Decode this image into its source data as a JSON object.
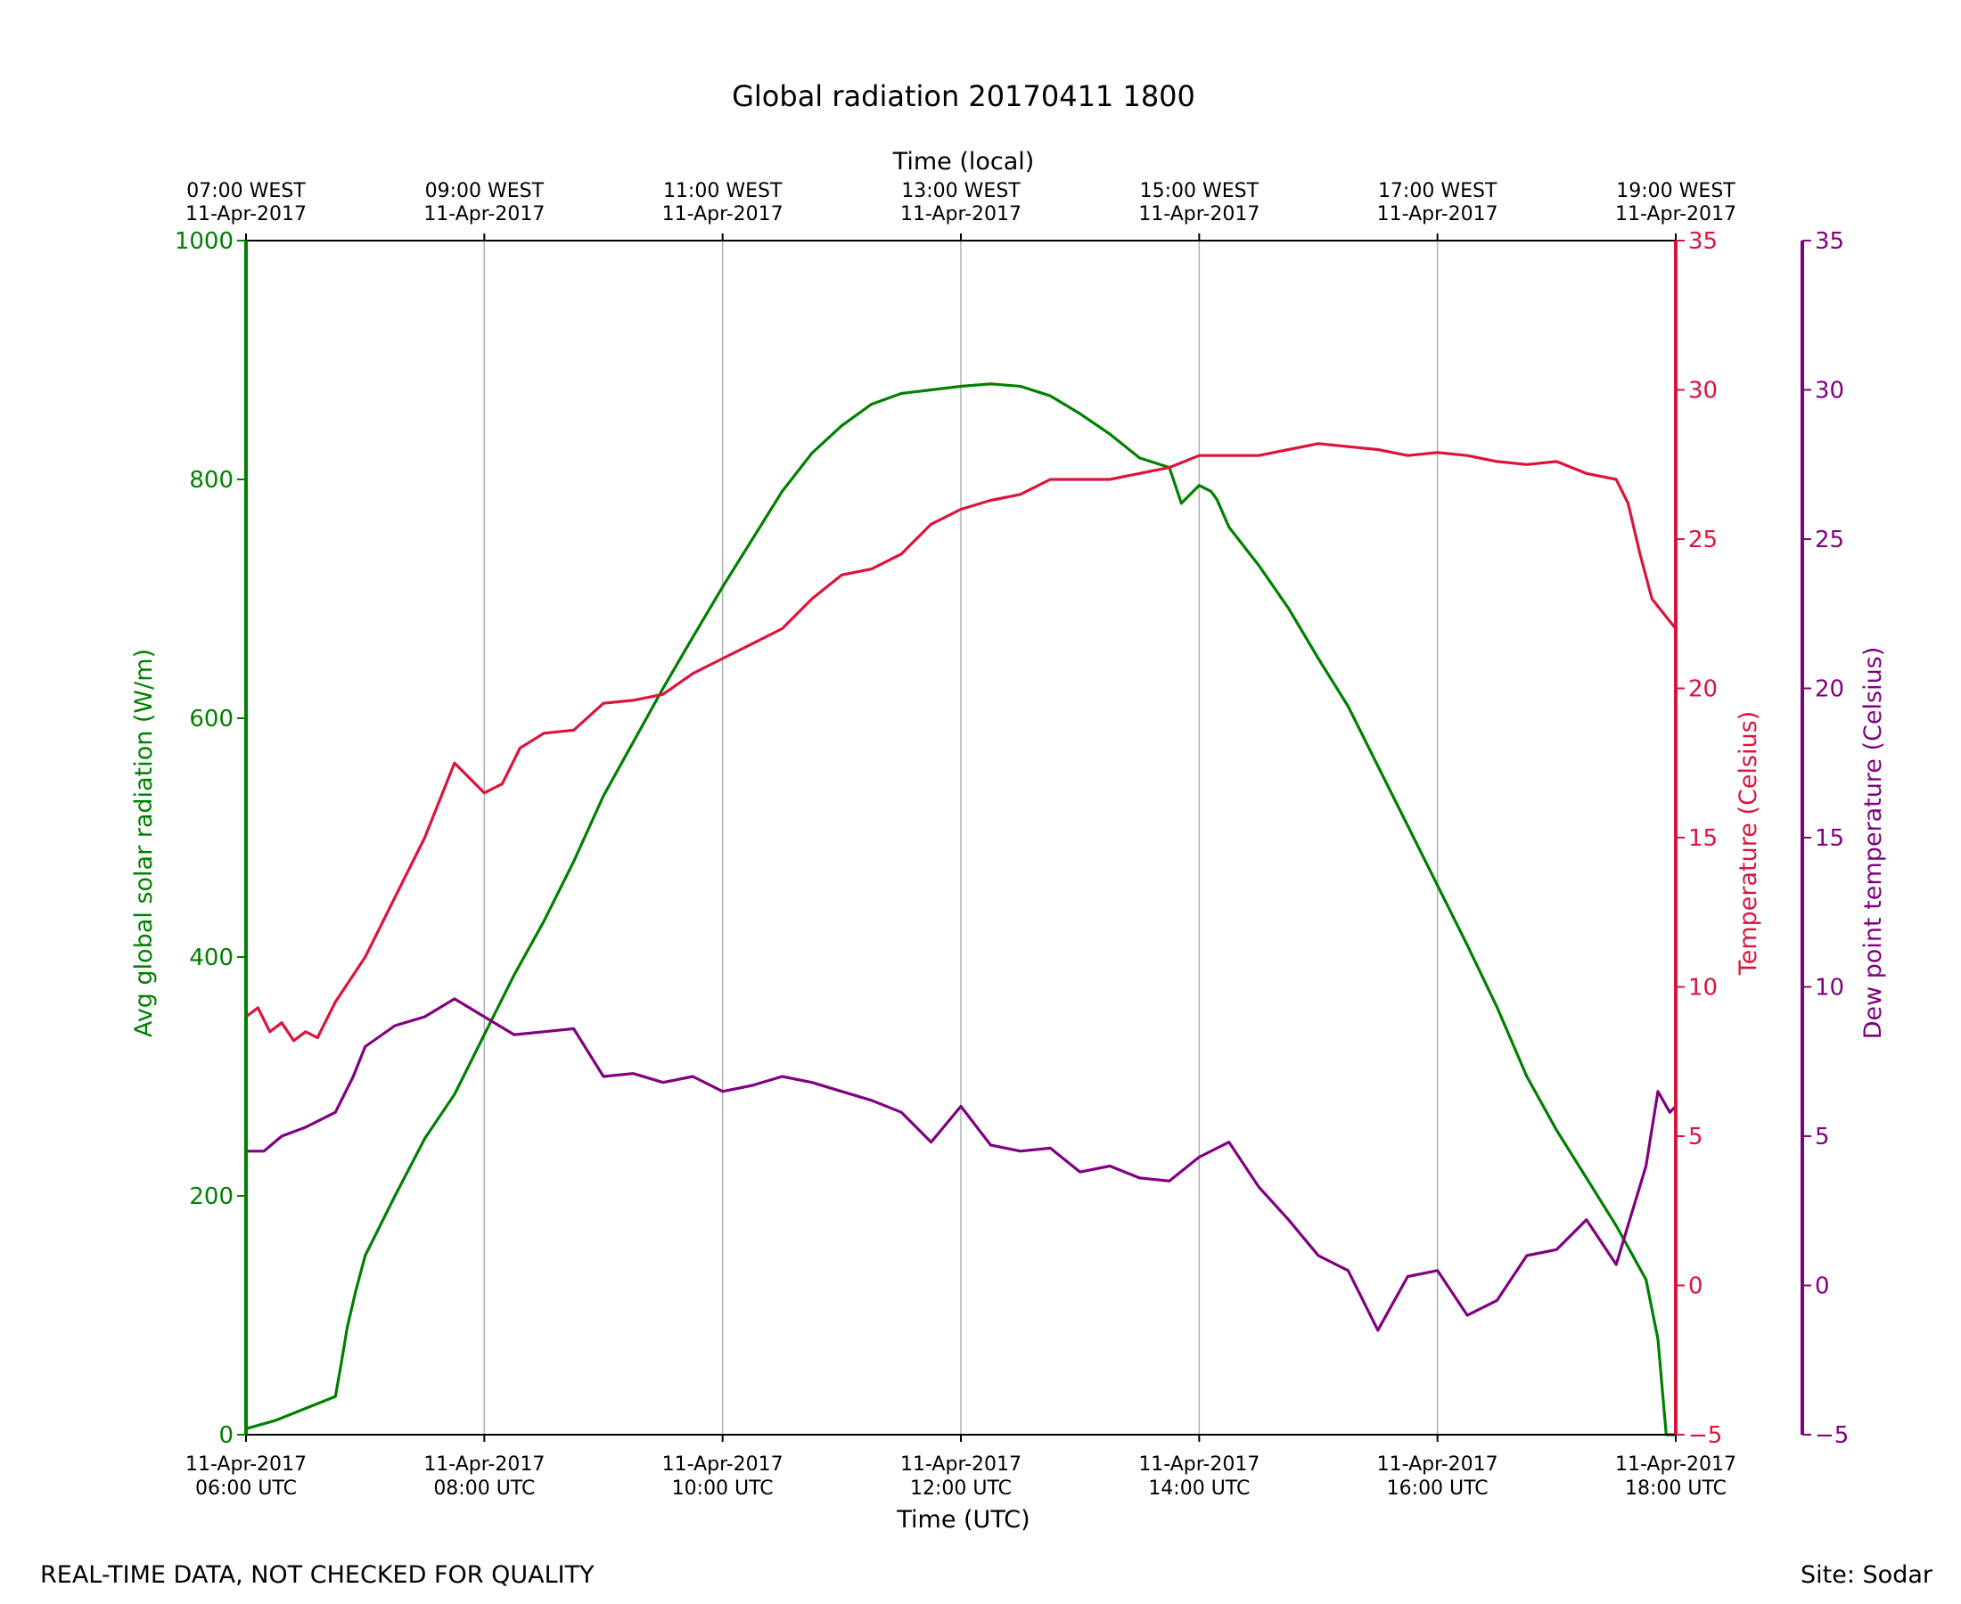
{
  "chart_data": {
    "type": "line",
    "title": "Global radiation 20170411 1800",
    "xlabel": "Time (UTC)",
    "xlabel_top": "Time (local)",
    "x_unit": "hours UTC",
    "xlim": [
      6,
      18
    ],
    "x_ticks": [
      {
        "x": 6,
        "bottom": [
          "11-Apr-2017",
          "06:00 UTC"
        ],
        "top": [
          "07:00 WEST",
          "11-Apr-2017"
        ]
      },
      {
        "x": 8,
        "bottom": [
          "11-Apr-2017",
          "08:00 UTC"
        ],
        "top": [
          "09:00 WEST",
          "11-Apr-2017"
        ]
      },
      {
        "x": 10,
        "bottom": [
          "11-Apr-2017",
          "10:00 UTC"
        ],
        "top": [
          "11:00 WEST",
          "11-Apr-2017"
        ]
      },
      {
        "x": 12,
        "bottom": [
          "11-Apr-2017",
          "12:00 UTC"
        ],
        "top": [
          "13:00 WEST",
          "11-Apr-2017"
        ]
      },
      {
        "x": 14,
        "bottom": [
          "11-Apr-2017",
          "14:00 UTC"
        ],
        "top": [
          "15:00 WEST",
          "11-Apr-2017"
        ]
      },
      {
        "x": 16,
        "bottom": [
          "11-Apr-2017",
          "16:00 UTC"
        ],
        "top": [
          "17:00 WEST",
          "11-Apr-2017"
        ]
      },
      {
        "x": 18,
        "bottom": [
          "11-Apr-2017",
          "18:00 UTC"
        ],
        "top": [
          "19:00 WEST",
          "11-Apr-2017"
        ]
      }
    ],
    "grid": "vertical",
    "axes": {
      "radiation": {
        "label": "Avg global solar radiation (W/m)",
        "color": "#008000",
        "ylim": [
          0,
          1000
        ],
        "ticks": [
          "0",
          "200",
          "400",
          "600",
          "800",
          "1000"
        ],
        "tick_values": [
          0,
          200,
          400,
          600,
          800,
          1000
        ]
      },
      "temperature": {
        "label": "Temperature (Celsius)",
        "color": "#dc143c",
        "ylim": [
          -5,
          35
        ],
        "ticks": [
          "−5",
          "0",
          "5",
          "10",
          "15",
          "20",
          "25",
          "30",
          "35"
        ],
        "tick_values": [
          -5,
          0,
          5,
          10,
          15,
          20,
          25,
          30,
          35
        ]
      },
      "dewpoint": {
        "label": "Dew point temperature (Celsius)",
        "color": "#800080",
        "ylim": [
          -5,
          35
        ],
        "ticks": [
          "−5",
          "0",
          "5",
          "10",
          "15",
          "20",
          "25",
          "30",
          "35"
        ],
        "tick_values": [
          -5,
          0,
          5,
          10,
          15,
          20,
          25,
          30,
          35
        ]
      }
    },
    "series": [
      {
        "name": "Avg global solar radiation",
        "axis": "radiation",
        "color": "#008000",
        "x": [
          6.0,
          6.25,
          6.5,
          6.75,
          6.8,
          6.85,
          6.92,
          7.0,
          7.25,
          7.5,
          7.75,
          8.0,
          8.25,
          8.5,
          8.75,
          9.0,
          9.25,
          9.5,
          9.75,
          10.0,
          10.25,
          10.5,
          10.75,
          11.0,
          11.25,
          11.5,
          11.75,
          12.0,
          12.25,
          12.5,
          12.75,
          13.0,
          13.25,
          13.5,
          13.75,
          13.85,
          14.0,
          14.1,
          14.15,
          14.25,
          14.5,
          14.75,
          15.0,
          15.25,
          15.5,
          15.75,
          16.0,
          16.25,
          16.5,
          16.75,
          17.0,
          17.25,
          17.5,
          17.75,
          17.85,
          17.92,
          18.0
        ],
        "values": [
          5,
          12,
          22,
          32,
          60,
          90,
          120,
          150,
          200,
          248,
          285,
          335,
          385,
          430,
          480,
          535,
          580,
          625,
          668,
          710,
          750,
          790,
          822,
          845,
          863,
          872,
          875,
          878,
          880,
          878,
          870,
          855,
          838,
          818,
          810,
          780,
          795,
          790,
          783,
          760,
          728,
          692,
          650,
          610,
          560,
          510,
          460,
          410,
          358,
          300,
          255,
          215,
          175,
          130,
          80,
          0,
          0
        ]
      },
      {
        "name": "Temperature",
        "axis": "temperature",
        "color": "#dc143c",
        "x": [
          6.0,
          6.1,
          6.2,
          6.3,
          6.4,
          6.5,
          6.6,
          6.75,
          7.0,
          7.25,
          7.5,
          7.75,
          8.0,
          8.15,
          8.3,
          8.5,
          8.75,
          9.0,
          9.25,
          9.5,
          9.75,
          10.0,
          10.25,
          10.5,
          10.75,
          11.0,
          11.25,
          11.5,
          11.75,
          12.0,
          12.25,
          12.5,
          12.75,
          13.0,
          13.25,
          13.5,
          13.75,
          14.0,
          14.25,
          14.5,
          14.75,
          15.0,
          15.25,
          15.5,
          15.75,
          16.0,
          16.25,
          16.5,
          16.75,
          17.0,
          17.25,
          17.5,
          17.6,
          17.7,
          17.8,
          17.9,
          18.0
        ],
        "values": [
          9.0,
          9.3,
          8.5,
          8.8,
          8.2,
          8.5,
          8.3,
          9.5,
          11.0,
          13.0,
          15.0,
          17.5,
          16.5,
          16.8,
          18.0,
          18.5,
          18.6,
          19.5,
          19.6,
          19.8,
          20.5,
          21.0,
          21.5,
          22.0,
          23.0,
          23.8,
          24.0,
          24.5,
          25.5,
          26.0,
          26.3,
          26.5,
          27.0,
          27.0,
          27.0,
          27.2,
          27.4,
          27.8,
          27.8,
          27.8,
          28.0,
          28.2,
          28.1,
          28.0,
          27.8,
          27.9,
          27.8,
          27.6,
          27.5,
          27.6,
          27.2,
          27.0,
          26.2,
          24.5,
          23.0,
          22.5,
          22.0
        ]
      },
      {
        "name": "Dew point temperature",
        "axis": "dewpoint",
        "color": "#800080",
        "x": [
          6.0,
          6.15,
          6.3,
          6.5,
          6.75,
          6.9,
          7.0,
          7.25,
          7.5,
          7.75,
          8.0,
          8.25,
          8.5,
          8.75,
          9.0,
          9.25,
          9.5,
          9.75,
          10.0,
          10.25,
          10.5,
          10.75,
          11.0,
          11.25,
          11.5,
          11.75,
          12.0,
          12.25,
          12.5,
          12.75,
          13.0,
          13.25,
          13.5,
          13.75,
          14.0,
          14.25,
          14.5,
          14.75,
          15.0,
          15.25,
          15.5,
          15.75,
          16.0,
          16.25,
          16.5,
          16.75,
          17.0,
          17.25,
          17.5,
          17.75,
          17.85,
          17.95,
          18.0
        ],
        "values": [
          4.5,
          4.5,
          5.0,
          5.3,
          5.8,
          7.0,
          8.0,
          8.7,
          9.0,
          9.6,
          9.0,
          8.4,
          8.5,
          8.6,
          7.0,
          7.1,
          6.8,
          7.0,
          6.5,
          6.7,
          7.0,
          6.8,
          6.5,
          6.2,
          5.8,
          4.8,
          6.0,
          4.7,
          4.5,
          4.6,
          3.8,
          4.0,
          3.6,
          3.5,
          4.3,
          4.8,
          3.3,
          2.2,
          1.0,
          0.5,
          -1.5,
          0.3,
          0.5,
          -1.0,
          -0.5,
          1.0,
          1.2,
          2.2,
          0.7,
          4.0,
          6.5,
          5.8,
          6.0
        ]
      }
    ]
  },
  "footer": {
    "note": "REAL-TIME DATA, NOT CHECKED FOR QUALITY",
    "site": "Site: Sodar"
  }
}
